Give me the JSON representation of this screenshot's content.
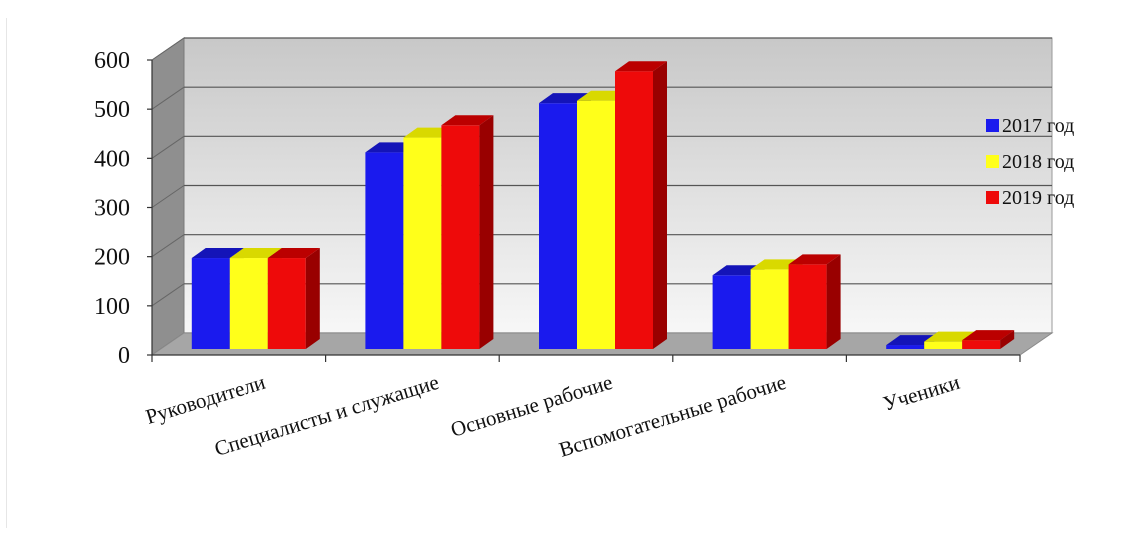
{
  "chart_data": {
    "type": "bar",
    "style": "3d-clustered-column",
    "categories": [
      "Руководители",
      "Специалисты и служащие",
      "Основные рабочие",
      "Вспомогательные рабочие",
      "Ученики"
    ],
    "series": [
      {
        "name": "2017 год",
        "values": [
          185,
          400,
          500,
          150,
          8
        ],
        "color": "#1a1aee",
        "side_color": "#0a0a99",
        "top_color": "#1414b8"
      },
      {
        "name": "2018 год",
        "values": [
          185,
          430,
          505,
          162,
          15
        ],
        "color": "#ffff1a",
        "side_color": "#b3b300",
        "top_color": "#d9d900"
      },
      {
        "name": "2019 год",
        "values": [
          185,
          455,
          565,
          172,
          18
        ],
        "color": "#ee0a0a",
        "side_color": "#990000",
        "top_color": "#bb0000"
      }
    ],
    "ylim": [
      0,
      600
    ],
    "yticks": [
      0,
      100,
      200,
      300,
      400,
      500,
      600
    ],
    "ytick_labels": [
      "0",
      "100",
      "200",
      "300",
      "400",
      "500",
      "600"
    ],
    "grid": true,
    "legend_position": "right",
    "title": "",
    "xlabel": "",
    "ylabel": ""
  }
}
